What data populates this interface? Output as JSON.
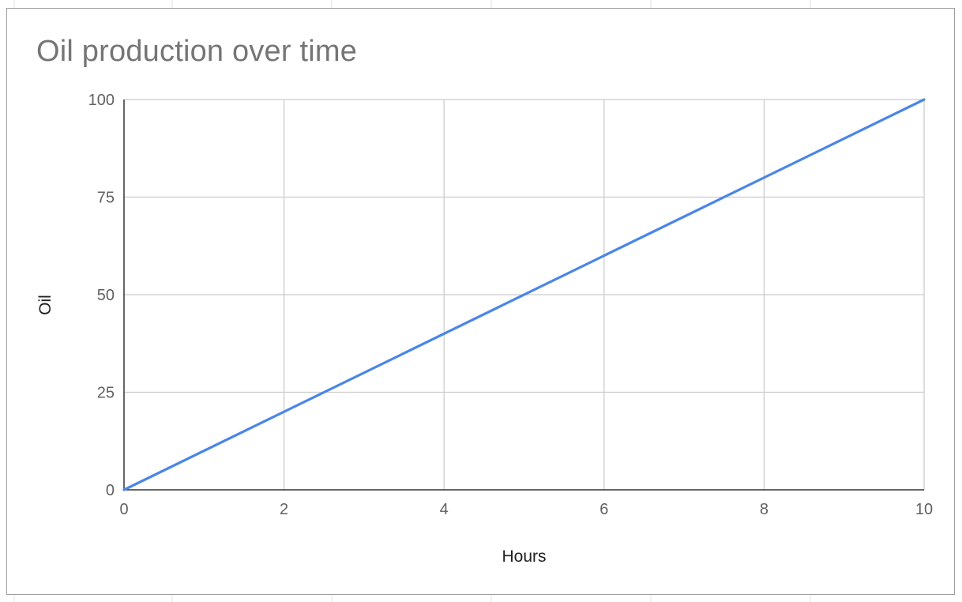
{
  "chart_data": {
    "type": "line",
    "title": "Oil production over time",
    "xlabel": "Hours",
    "ylabel": "Oil",
    "xlim": [
      0,
      10
    ],
    "ylim": [
      0,
      100
    ],
    "x_ticks": [
      "0",
      "2",
      "4",
      "6",
      "8",
      "10"
    ],
    "y_ticks": [
      "0",
      "25",
      "50",
      "75",
      "100"
    ],
    "grid": true,
    "legend": "none",
    "series": [
      {
        "color": "#4a86e8",
        "x": [
          0,
          10
        ],
        "y": [
          0,
          100
        ]
      }
    ]
  }
}
